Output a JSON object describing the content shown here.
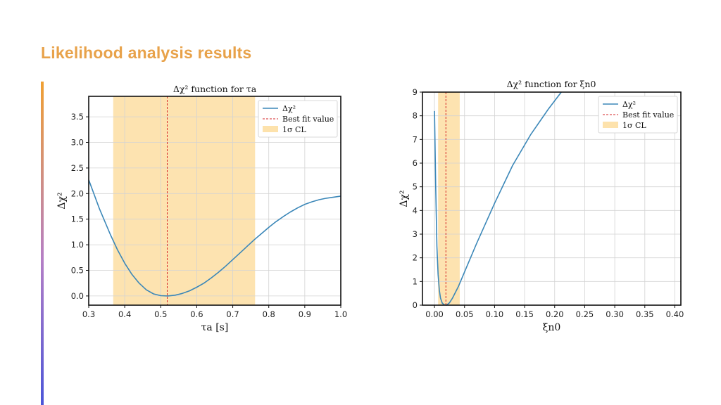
{
  "slide": {
    "title": "Likelihood analysis results"
  },
  "colors": {
    "title": "#e8a24a",
    "curve": "#3b87b8",
    "bestfit": "#d62728",
    "band": "#fde2ac"
  },
  "chart_data": [
    {
      "type": "line",
      "title": "Δχ² function for τa",
      "xlabel": "τa [s]",
      "ylabel": "Δχ²",
      "xlim": [
        0.3,
        1.0
      ],
      "ylim": [
        -0.18,
        3.9
      ],
      "xticks": [
        0.3,
        0.4,
        0.5,
        0.6,
        0.7,
        0.8,
        0.9,
        1.0
      ],
      "xtick_labels": [
        "0.3",
        "0.4",
        "0.5",
        "0.6",
        "0.7",
        "0.8",
        "0.9",
        "1.0"
      ],
      "yticks": [
        0.0,
        0.5,
        1.0,
        1.5,
        2.0,
        2.5,
        3.0,
        3.5
      ],
      "ytick_labels": [
        "0.0",
        "0.5",
        "1.0",
        "1.5",
        "2.0",
        "2.5",
        "3.0",
        "3.5"
      ],
      "series": [
        {
          "name": "Δχ²",
          "x": [
            0.3,
            0.33,
            0.36,
            0.38,
            0.4,
            0.42,
            0.44,
            0.46,
            0.48,
            0.5,
            0.52,
            0.54,
            0.56,
            0.58,
            0.6,
            0.62,
            0.64,
            0.66,
            0.68,
            0.7,
            0.72,
            0.74,
            0.76,
            0.78,
            0.8,
            0.82,
            0.84,
            0.86,
            0.88,
            0.9,
            0.92,
            0.94,
            0.96,
            0.98,
            1.0
          ],
          "y": [
            2.27,
            1.7,
            1.2,
            0.9,
            0.64,
            0.42,
            0.25,
            0.12,
            0.04,
            0.005,
            0.0,
            0.015,
            0.05,
            0.1,
            0.17,
            0.25,
            0.35,
            0.46,
            0.58,
            0.71,
            0.84,
            0.97,
            1.1,
            1.22,
            1.34,
            1.45,
            1.55,
            1.64,
            1.72,
            1.79,
            1.84,
            1.88,
            1.91,
            1.93,
            1.95
          ]
        }
      ],
      "best_fit": 0.518,
      "band": [
        0.368,
        0.762
      ],
      "legend": [
        "Δχ²",
        "Best fit value",
        "1σ CL"
      ],
      "legend_position": "top-right"
    },
    {
      "type": "line",
      "title": "Δχ² function for ξn0",
      "xlabel": "ξn0",
      "ylabel": "Δχ²",
      "xlim": [
        -0.02,
        0.41
      ],
      "ylim": [
        0,
        9
      ],
      "xticks": [
        0.0,
        0.05,
        0.1,
        0.15,
        0.2,
        0.25,
        0.3,
        0.35,
        0.4
      ],
      "xtick_labels": [
        "0.00",
        "0.05",
        "0.10",
        "0.15",
        "0.20",
        "0.25",
        "0.30",
        "0.35",
        "0.40"
      ],
      "yticks": [
        0,
        1,
        2,
        3,
        4,
        5,
        6,
        7,
        8,
        9
      ],
      "ytick_labels": [
        "0",
        "1",
        "2",
        "3",
        "4",
        "5",
        "6",
        "7",
        "8",
        "9"
      ],
      "series": [
        {
          "name": "Δχ²",
          "x": [
            0.0,
            0.002,
            0.004,
            0.006,
            0.008,
            0.01,
            0.013,
            0.016,
            0.02,
            0.025,
            0.03,
            0.04,
            0.05,
            0.07,
            0.1,
            0.13,
            0.16,
            0.19,
            0.211
          ],
          "y": [
            8.2,
            5.0,
            2.5,
            1.3,
            0.65,
            0.3,
            0.08,
            0.02,
            0.0,
            0.1,
            0.3,
            0.8,
            1.4,
            2.6,
            4.3,
            5.9,
            7.2,
            8.3,
            9.0
          ]
        }
      ],
      "best_fit": 0.019,
      "band": [
        0.006,
        0.042
      ],
      "legend": [
        "Δχ²",
        "Best fit value",
        "1σ CL"
      ],
      "legend_position": "top-right"
    }
  ]
}
